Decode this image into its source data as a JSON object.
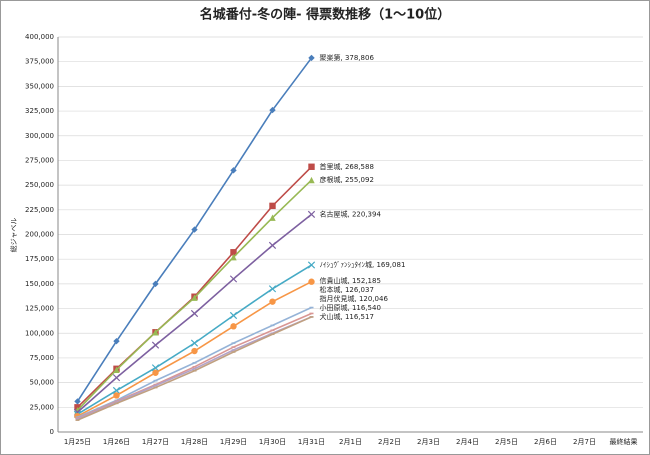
{
  "chart_data": {
    "type": "line",
    "title": "名城番付-冬の陣- 得票数推移（1〜10位）",
    "y_label": "総ジャベル",
    "categories": [
      "1月25日",
      "1月26日",
      "1月27日",
      "1月28日",
      "1月29日",
      "1月30日",
      "1月31日",
      "2月1日",
      "2月2日",
      "2月3日",
      "2月4日",
      "2月5日",
      "2月6日",
      "2月7日",
      "最終結果"
    ],
    "ylim": [
      0,
      400000
    ],
    "yticks": [
      {
        "value": 0,
        "label": "0"
      },
      {
        "value": 25000,
        "label": "25,000"
      },
      {
        "value": 50000,
        "label": "50,000"
      },
      {
        "value": 75000,
        "label": "75,000"
      },
      {
        "value": 100000,
        "label": "100,000"
      },
      {
        "value": 125000,
        "label": "125,000"
      },
      {
        "value": 150000,
        "label": "150,000"
      },
      {
        "value": 175000,
        "label": "175,000"
      },
      {
        "value": 200000,
        "label": "200,000"
      },
      {
        "value": 225000,
        "label": "225,000"
      },
      {
        "value": 250000,
        "label": "250,000"
      },
      {
        "value": 275000,
        "label": "275,000"
      },
      {
        "value": 300000,
        "label": "300,000"
      },
      {
        "value": 325000,
        "label": "325,000"
      },
      {
        "value": 350000,
        "label": "350,000"
      },
      {
        "value": 375000,
        "label": "375,000"
      },
      {
        "value": 400000,
        "label": "400,000"
      }
    ],
    "grid": true,
    "series": [
      {
        "name": "聚楽第",
        "color": "#4a7ebb",
        "marker": "diamond",
        "values": [
          31000,
          92000,
          150000,
          205000,
          265000,
          326000,
          378806,
          null,
          null,
          null,
          null,
          null,
          null,
          null,
          null
        ],
        "value_labels": [
          null,
          null,
          null,
          null,
          null,
          null,
          "聚楽第, 378,806",
          null,
          null,
          null,
          null,
          null,
          null,
          null,
          null
        ]
      },
      {
        "name": "首里城",
        "color": "#be4b48",
        "marker": "square",
        "values": [
          25000,
          64000,
          101000,
          137000,
          182000,
          229000,
          268588,
          null,
          null,
          null,
          null,
          null,
          null,
          null,
          null
        ],
        "value_labels": [
          null,
          null,
          null,
          null,
          null,
          null,
          "首里城, 268,588",
          null,
          null,
          null,
          null,
          null,
          null,
          null,
          null
        ]
      },
      {
        "name": "彦根城",
        "color": "#98b954",
        "marker": "triangle",
        "values": [
          22000,
          63000,
          101000,
          136000,
          177000,
          217000,
          255092,
          null,
          null,
          null,
          null,
          null,
          null,
          null,
          null
        ],
        "value_labels": [
          null,
          null,
          null,
          null,
          null,
          null,
          "彦根城, 255,092",
          null,
          null,
          null,
          null,
          null,
          null,
          null,
          null
        ]
      },
      {
        "name": "名古屋城",
        "color": "#7d60a0",
        "marker": "x",
        "values": [
          20000,
          55000,
          88000,
          120000,
          155000,
          189000,
          220394,
          null,
          null,
          null,
          null,
          null,
          null,
          null,
          null
        ],
        "value_labels": [
          null,
          null,
          null,
          null,
          null,
          null,
          "名古屋城, 220,394",
          null,
          null,
          null,
          null,
          null,
          null,
          null,
          null
        ]
      },
      {
        "name": "ﾉｲｼｭｳﾞｧﾝｼｭﾀｲﾝ城",
        "color": "#46aac5",
        "marker": "x",
        "values": [
          18000,
          42000,
          65000,
          90000,
          118000,
          145000,
          169081,
          null,
          null,
          null,
          null,
          null,
          null,
          null,
          null
        ],
        "value_labels": [
          null,
          null,
          null,
          null,
          null,
          null,
          "ﾉｲｼｭｳﾞｧﾝｼｭﾀｲﾝ城, 169,081",
          null,
          null,
          null,
          null,
          null,
          null,
          null,
          null
        ]
      },
      {
        "name": "信貴山城",
        "color": "#f79646",
        "marker": "circle",
        "values": [
          16000,
          37000,
          60000,
          82000,
          107000,
          132000,
          152185,
          null,
          null,
          null,
          null,
          null,
          null,
          null,
          null
        ],
        "value_labels": [
          null,
          null,
          null,
          null,
          null,
          null,
          "信貴山城, 152,185",
          null,
          null,
          null,
          null,
          null,
          null,
          null,
          null
        ]
      },
      {
        "name": "松本城",
        "color": "#95b3d7",
        "marker": "line",
        "values": [
          15000,
          32000,
          52000,
          70000,
          90000,
          108000,
          126037,
          null,
          null,
          null,
          null,
          null,
          null,
          null,
          null
        ],
        "value_labels": [
          null,
          null,
          null,
          null,
          null,
          null,
          "松本城, 126,037",
          null,
          null,
          null,
          null,
          null,
          null,
          null,
          null
        ]
      },
      {
        "name": "指月伏見城",
        "color": "#d99694",
        "marker": "line",
        "values": [
          14000,
          31000,
          48000,
          66000,
          86000,
          103000,
          120046,
          null,
          null,
          null,
          null,
          null,
          null,
          null,
          null
        ],
        "value_labels": [
          null,
          null,
          null,
          null,
          null,
          null,
          "指月伏見城, 120,046",
          null,
          null,
          null,
          null,
          null,
          null,
          null,
          null
        ]
      },
      {
        "name": "小田原城",
        "color": "#b3a2c7",
        "marker": "line",
        "values": [
          13000,
          30000,
          47000,
          64000,
          83000,
          100000,
          116540,
          null,
          null,
          null,
          null,
          null,
          null,
          null,
          null
        ],
        "value_labels": [
          null,
          null,
          null,
          null,
          null,
          null,
          "小田原城, 116,540",
          null,
          null,
          null,
          null,
          null,
          null,
          null,
          null
        ]
      },
      {
        "name": "犬山城",
        "color": "#c0a080",
        "marker": "line",
        "values": [
          12000,
          29000,
          45000,
          62000,
          81000,
          99000,
          116517,
          null,
          null,
          null,
          null,
          null,
          null,
          null,
          null
        ],
        "value_labels": [
          null,
          null,
          null,
          null,
          null,
          null,
          "犬山城, 116,517",
          null,
          null,
          null,
          null,
          null,
          null,
          null,
          null
        ]
      }
    ]
  }
}
